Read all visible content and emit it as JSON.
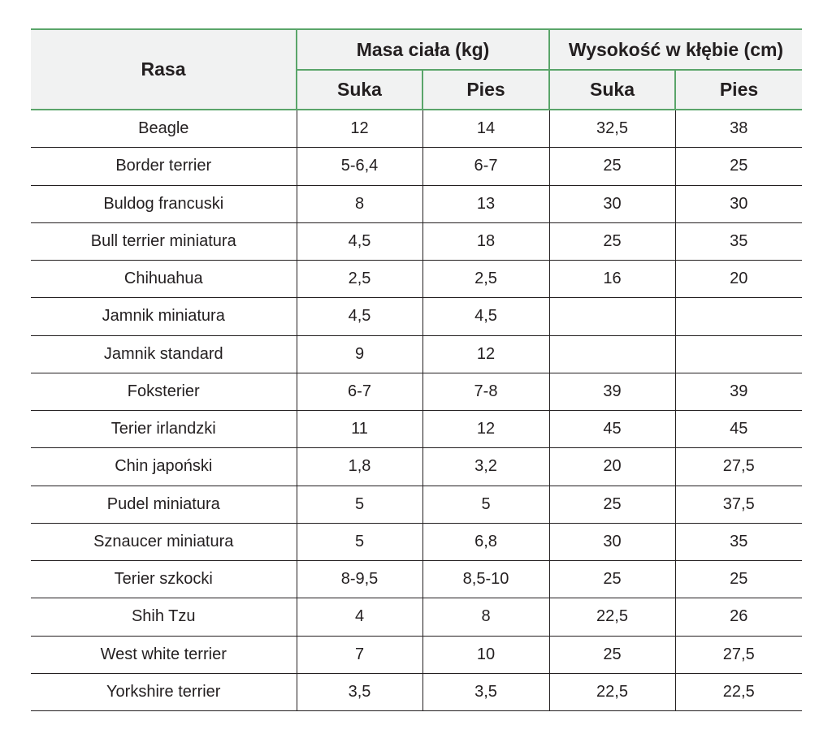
{
  "table": {
    "header": {
      "rasa": "Rasa",
      "group_mass": "Masa ciała (kg)",
      "group_height": "Wysokość w kłębie (cm)",
      "mass_female": "Suka",
      "mass_male": "Pies",
      "height_female": "Suka",
      "height_male": "Pies"
    },
    "rows": [
      {
        "breed": "Beagle",
        "mass_f": "12",
        "mass_m": "14",
        "height_f": "32,5",
        "height_m": "38"
      },
      {
        "breed": "Border terrier",
        "mass_f": "5-6,4",
        "mass_m": "6-7",
        "height_f": "25",
        "height_m": "25"
      },
      {
        "breed": "Buldog francuski",
        "mass_f": "8",
        "mass_m": "13",
        "height_f": "30",
        "height_m": "30"
      },
      {
        "breed": "Bull terrier miniatura",
        "mass_f": "4,5",
        "mass_m": "18",
        "height_f": "25",
        "height_m": "35"
      },
      {
        "breed": "Chihuahua",
        "mass_f": "2,5",
        "mass_m": "2,5",
        "height_f": "16",
        "height_m": "20"
      },
      {
        "breed": "Jamnik miniatura",
        "mass_f": "4,5",
        "mass_m": "4,5",
        "height_f": "",
        "height_m": ""
      },
      {
        "breed": "Jamnik standard",
        "mass_f": "9",
        "mass_m": "12",
        "height_f": "",
        "height_m": ""
      },
      {
        "breed": "Foksterier",
        "mass_f": "6-7",
        "mass_m": "7-8",
        "height_f": "39",
        "height_m": "39"
      },
      {
        "breed": "Terier irlandzki",
        "mass_f": "11",
        "mass_m": "12",
        "height_f": "45",
        "height_m": "45"
      },
      {
        "breed": "Chin japoński",
        "mass_f": "1,8",
        "mass_m": "3,2",
        "height_f": "20",
        "height_m": "27,5"
      },
      {
        "breed": "Pudel miniatura",
        "mass_f": "5",
        "mass_m": "5",
        "height_f": "25",
        "height_m": "37,5"
      },
      {
        "breed": "Sznaucer miniatura",
        "mass_f": "5",
        "mass_m": "6,8",
        "height_f": "30",
        "height_m": "35"
      },
      {
        "breed": "Terier szkocki",
        "mass_f": "8-9,5",
        "mass_m": "8,5-10",
        "height_f": "25",
        "height_m": "25"
      },
      {
        "breed": "Shih Tzu",
        "mass_f": "4",
        "mass_m": "8",
        "height_f": "22,5",
        "height_m": "26"
      },
      {
        "breed": "West white terrier",
        "mass_f": "7",
        "mass_m": "10",
        "height_f": "25",
        "height_m": "27,5"
      },
      {
        "breed": "Yorkshire terrier",
        "mass_f": "3,5",
        "mass_m": "3,5",
        "height_f": "22,5",
        "height_m": "22,5"
      }
    ]
  },
  "colors": {
    "header_background": "#f1f2f2",
    "header_rule": "#5aa56a",
    "text": "#231f20"
  }
}
